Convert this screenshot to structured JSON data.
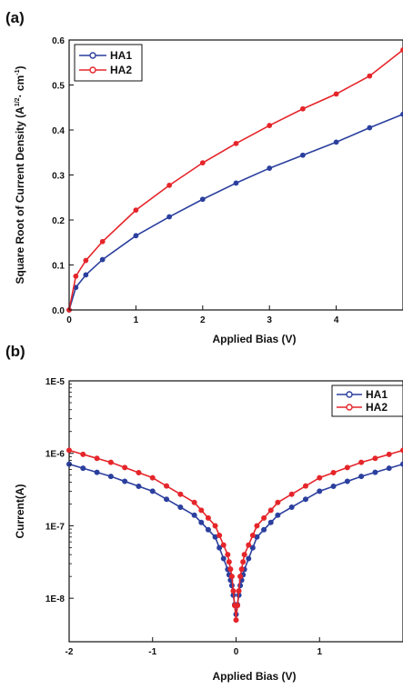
{
  "figure": {
    "panel_a_label": "(a)",
    "panel_b_label": "(b)"
  },
  "chart_data": [
    {
      "type": "line",
      "panel": "(a)",
      "xlabel": "Applied Bias (V)",
      "ylabel": "Square Root of Current Density (A",
      "ylabel_sup1": "1/2",
      "ylabel_mid": "· cm",
      "ylabel_sup2": "-1",
      "ylabel_end": ")",
      "xlim": [
        0,
        5
      ],
      "ylim": [
        0,
        0.6
      ],
      "x_ticks": [
        0,
        1,
        2,
        3,
        4
      ],
      "y_ticks": [
        0.0,
        0.1,
        0.2,
        0.3,
        0.4,
        0.5,
        0.6
      ],
      "y_tick_labels": [
        "0.0",
        "0.1",
        "0.2",
        "0.3",
        "0.4",
        "0.5",
        "0.6"
      ],
      "legend_position": "top-left",
      "grid": false,
      "series": [
        {
          "name": "HA1",
          "color": "#2b3f9e",
          "marker": "circle",
          "x": [
            0,
            0.1,
            0.25,
            0.5,
            1.0,
            1.5,
            2.0,
            2.5,
            3.0,
            3.5,
            4.0,
            4.5,
            5.0
          ],
          "y": [
            0.0,
            0.05,
            0.078,
            0.112,
            0.165,
            0.207,
            0.246,
            0.282,
            0.315,
            0.344,
            0.373,
            0.405,
            0.435
          ]
        },
        {
          "name": "HA2",
          "color": "#e5252a",
          "marker": "circle",
          "x": [
            0,
            0.1,
            0.25,
            0.5,
            1.0,
            1.5,
            2.0,
            2.5,
            3.0,
            3.5,
            4.0,
            4.5,
            5.0
          ],
          "y": [
            0.0,
            0.075,
            0.11,
            0.152,
            0.222,
            0.277,
            0.327,
            0.37,
            0.41,
            0.447,
            0.48,
            0.52,
            0.578
          ]
        }
      ]
    },
    {
      "type": "line",
      "panel": "(b)",
      "xlabel": "Applied Bias (V)",
      "ylabel": "Current(A)",
      "xlim": [
        -2,
        2
      ],
      "ylim_log10": [
        -8.6,
        -5
      ],
      "y_scale": "log",
      "x_ticks": [
        -2,
        -1,
        0,
        1
      ],
      "x_tick_labels": [
        "-2",
        "-1",
        "0",
        "1"
      ],
      "y_ticks_log10": [
        -8,
        -7,
        -6,
        -5
      ],
      "y_tick_labels": [
        "1E-8",
        "1E-7",
        "1E-6",
        "1E-5"
      ],
      "legend_position": "top-right",
      "grid": false,
      "series": [
        {
          "name": "HA1",
          "color": "#2b3f9e",
          "marker": "circle",
          "x": [
            -2,
            -1.5,
            -1.0,
            -0.5,
            -0.25,
            -0.1,
            -0.05,
            0,
            0.05,
            0.1,
            0.25,
            0.5,
            1.0,
            1.5,
            2.0
          ],
          "y": [
            7.1e-07,
            4.8e-07,
            3e-07,
            1.4e-07,
            7e-08,
            2.5e-08,
            1.5e-08,
            6e-09,
            1.5e-08,
            2.5e-08,
            7e-08,
            1.4e-07,
            3e-07,
            4.8e-07,
            7.1e-07
          ]
        },
        {
          "name": "HA2",
          "color": "#e5252a",
          "marker": "circle",
          "x": [
            -2,
            -1.5,
            -1.0,
            -0.5,
            -0.25,
            -0.1,
            -0.05,
            0,
            0.05,
            0.1,
            0.25,
            0.5,
            1.0,
            1.5,
            2.0
          ],
          "y": [
            1.1e-06,
            7.5e-07,
            4.6e-07,
            2.1e-07,
            1e-07,
            4e-08,
            2e-08,
            5e-09,
            2e-08,
            4e-08,
            1e-07,
            2.1e-07,
            4.6e-07,
            7.5e-07,
            1.1e-06
          ]
        }
      ]
    }
  ]
}
